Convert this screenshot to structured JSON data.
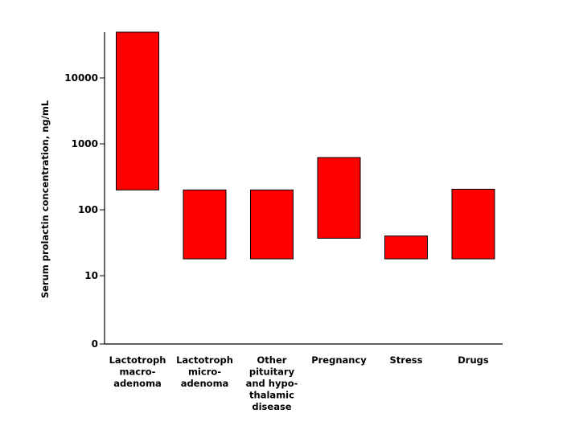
{
  "chart_data": {
    "type": "bar",
    "subtype": "floating-range",
    "ylabel": "Serum prolactin concentration, ng/mL",
    "yscale": "log",
    "yticks": [
      {
        "value": 0,
        "label": "0"
      },
      {
        "value": 10,
        "label": "10"
      },
      {
        "value": 100,
        "label": "100"
      },
      {
        "value": 1000,
        "label": "1000"
      },
      {
        "value": 10000,
        "label": "10000"
      }
    ],
    "categories": [
      {
        "lines": [
          "Lactotroph",
          "macro-",
          "adenoma"
        ]
      },
      {
        "lines": [
          "Lactotroph",
          "micro-",
          "adenoma"
        ]
      },
      {
        "lines": [
          "Other",
          "pituitary",
          "and hypo-",
          "thalamic",
          "disease"
        ]
      },
      {
        "lines": [
          "Pregnancy"
        ]
      },
      {
        "lines": [
          "Stress"
        ]
      },
      {
        "lines": [
          "Drugs"
        ]
      }
    ],
    "ranges": [
      {
        "low": 200,
        "high": 50000
      },
      {
        "low": 18,
        "high": 200
      },
      {
        "low": 18,
        "high": 200
      },
      {
        "low": 37,
        "high": 620
      },
      {
        "low": 18,
        "high": 40
      },
      {
        "low": 18,
        "high": 205
      }
    ],
    "bar_color": "#ff0000",
    "grid": false,
    "legend": "none"
  }
}
